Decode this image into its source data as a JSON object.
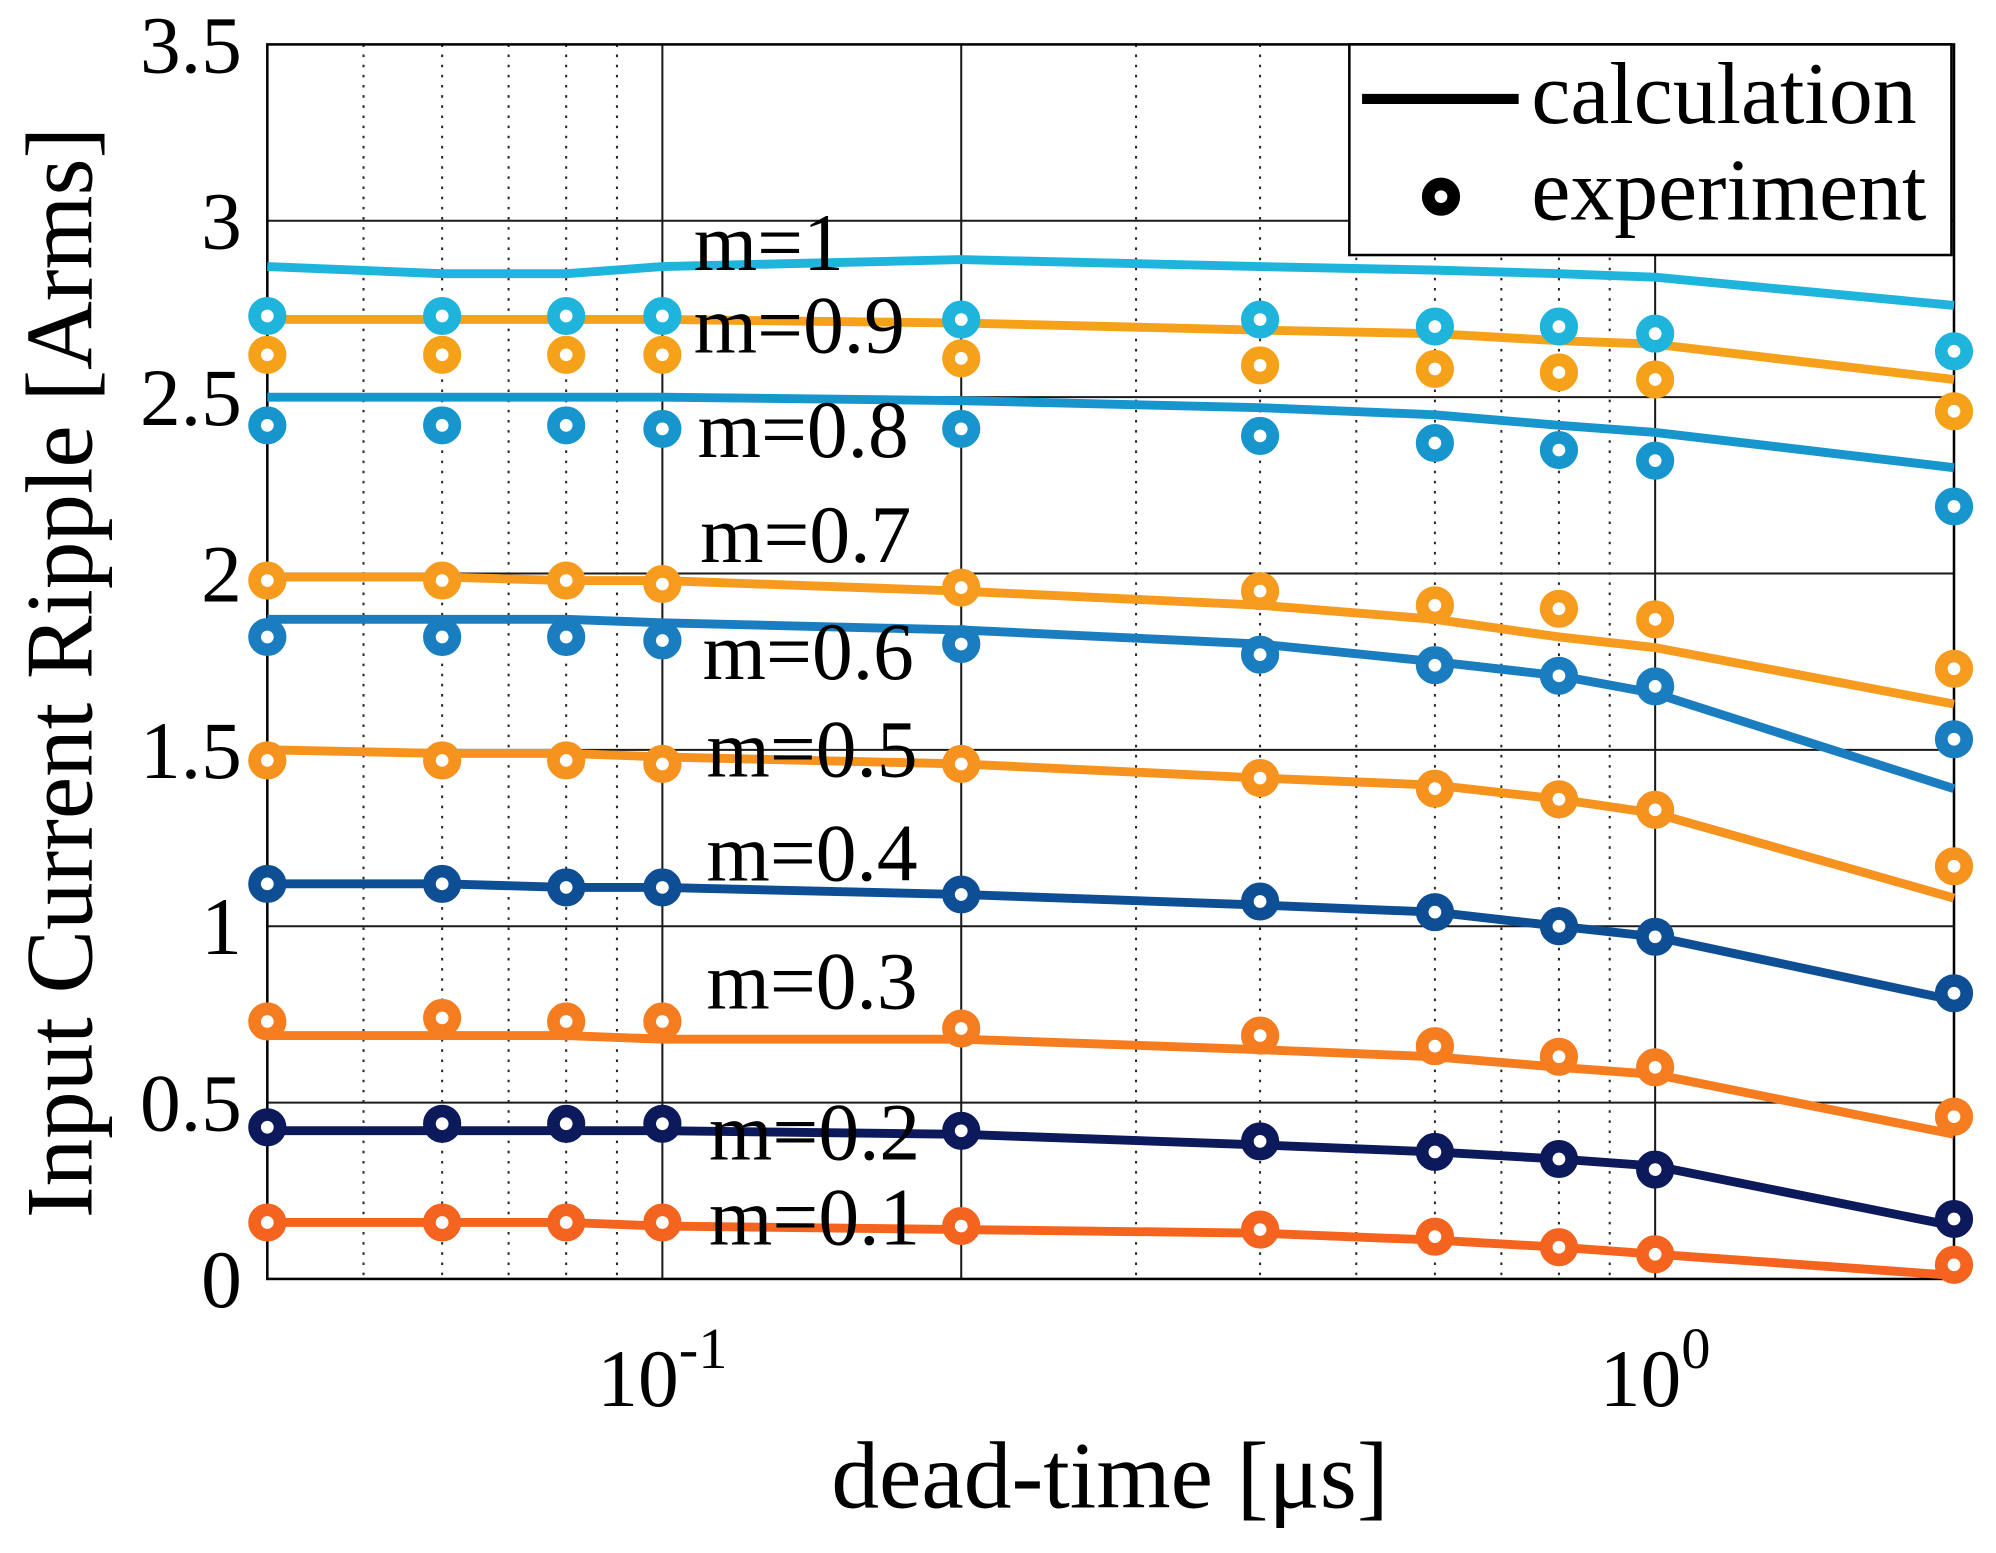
{
  "chart_data": {
    "type": "line",
    "xlabel": "dead-time [μs]",
    "ylabel": "Input Current Ripple [Arms]",
    "x_log_scale": true,
    "xlim": [
      0.04,
      2
    ],
    "ylim": [
      0,
      3.5
    ],
    "grid": true,
    "y_ticks": [
      0,
      0.5,
      1,
      1.5,
      2,
      2.5,
      3,
      3.5
    ],
    "y_tick_labels": [
      "0",
      "0.5",
      "1",
      "1.5",
      "2",
      "2.5",
      "3",
      "3.5"
    ],
    "x_ticks": [
      {
        "value": 0.1,
        "base": "10",
        "exp": "-1"
      },
      {
        "value": 1,
        "base": "10",
        "exp": "0"
      }
    ],
    "x_major_grid": [
      0.1,
      0.2,
      1
    ],
    "x_minor_grid": [
      0.05,
      0.06,
      0.07,
      0.08,
      0.09,
      0.3,
      0.4,
      0.5,
      0.6,
      0.7,
      0.8,
      0.9
    ],
    "legend": {
      "position": "top-right",
      "entries": [
        "calculation",
        "experiment"
      ]
    },
    "x": [
      0.04,
      0.06,
      0.08,
      0.1,
      0.2,
      0.4,
      0.6,
      0.8,
      1,
      2
    ],
    "series": [
      {
        "name": "m=1",
        "color": "#1fb4dc",
        "calculation": [
          2.87,
          2.85,
          2.85,
          2.87,
          2.89,
          2.87,
          2.86,
          2.85,
          2.84,
          2.76
        ],
        "experiment": [
          2.73,
          2.73,
          2.73,
          2.73,
          2.72,
          2.72,
          2.7,
          2.7,
          2.68,
          2.63
        ]
      },
      {
        "name": "m=0.9",
        "color": "#f6a11a",
        "calculation": [
          2.72,
          2.72,
          2.72,
          2.72,
          2.71,
          2.69,
          2.68,
          2.66,
          2.65,
          2.55
        ],
        "experiment": [
          2.62,
          2.62,
          2.62,
          2.62,
          2.61,
          2.59,
          2.58,
          2.57,
          2.55,
          2.46
        ]
      },
      {
        "name": "m=0.8",
        "color": "#1696cd",
        "calculation": [
          2.5,
          2.5,
          2.5,
          2.5,
          2.49,
          2.47,
          2.45,
          2.42,
          2.4,
          2.3
        ],
        "experiment": [
          2.42,
          2.42,
          2.42,
          2.41,
          2.41,
          2.39,
          2.37,
          2.35,
          2.32,
          2.19
        ]
      },
      {
        "name": "m=0.7",
        "color": "#f79b1e",
        "calculation": [
          1.99,
          1.99,
          1.98,
          1.98,
          1.95,
          1.91,
          1.87,
          1.82,
          1.79,
          1.63
        ],
        "experiment": [
          1.98,
          1.98,
          1.98,
          1.97,
          1.96,
          1.95,
          1.91,
          1.9,
          1.87,
          1.73
        ]
      },
      {
        "name": "m=0.6",
        "color": "#197dc0",
        "calculation": [
          1.87,
          1.87,
          1.87,
          1.86,
          1.84,
          1.8,
          1.75,
          1.71,
          1.66,
          1.39
        ],
        "experiment": [
          1.82,
          1.82,
          1.82,
          1.81,
          1.8,
          1.77,
          1.74,
          1.71,
          1.68,
          1.53
        ]
      },
      {
        "name": "m=0.5",
        "color": "#f6921e",
        "calculation": [
          1.5,
          1.49,
          1.49,
          1.48,
          1.46,
          1.42,
          1.4,
          1.36,
          1.32,
          1.08
        ],
        "experiment": [
          1.47,
          1.47,
          1.47,
          1.46,
          1.46,
          1.42,
          1.39,
          1.36,
          1.33,
          1.17
        ]
      },
      {
        "name": "m=0.4",
        "color": "#0e4e94",
        "calculation": [
          1.12,
          1.12,
          1.11,
          1.11,
          1.09,
          1.06,
          1.04,
          1.0,
          0.97,
          0.79
        ],
        "experiment": [
          1.12,
          1.12,
          1.11,
          1.11,
          1.09,
          1.07,
          1.04,
          1.0,
          0.97,
          0.81
        ]
      },
      {
        "name": "m=0.3",
        "color": "#f57d20",
        "calculation": [
          0.69,
          0.69,
          0.69,
          0.68,
          0.68,
          0.65,
          0.63,
          0.6,
          0.58,
          0.41
        ],
        "experiment": [
          0.73,
          0.74,
          0.73,
          0.73,
          0.71,
          0.69,
          0.66,
          0.63,
          0.6,
          0.46
        ]
      },
      {
        "name": "m=0.2",
        "color": "#0c195a",
        "calculation": [
          0.42,
          0.42,
          0.42,
          0.42,
          0.41,
          0.38,
          0.36,
          0.34,
          0.32,
          0.15
        ],
        "experiment": [
          0.43,
          0.44,
          0.44,
          0.44,
          0.42,
          0.39,
          0.36,
          0.34,
          0.31,
          0.17
        ]
      },
      {
        "name": "m=0.1",
        "color": "#f4641e",
        "calculation": [
          0.16,
          0.16,
          0.16,
          0.15,
          0.14,
          0.13,
          0.11,
          0.09,
          0.07,
          0.01
        ],
        "experiment": [
          0.16,
          0.16,
          0.16,
          0.16,
          0.15,
          0.14,
          0.12,
          0.09,
          0.07,
          0.04
        ]
      }
    ]
  }
}
